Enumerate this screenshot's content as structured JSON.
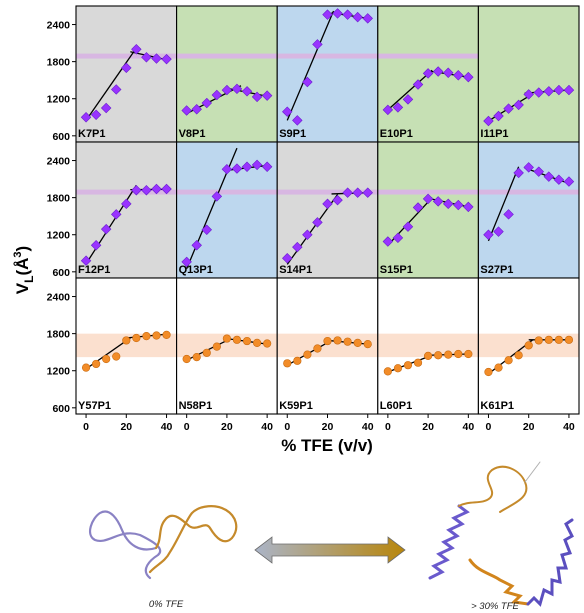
{
  "chart_data": {
    "type": "scatter",
    "xlabel": "% TFE (v/v)",
    "ylabel": "V_L (Å^3)",
    "ylabel_main": "V",
    "ylabel_sub": "L",
    "ylabel_unit_open": "(Å",
    "ylabel_unit_sup": "3",
    "ylabel_unit_close": ")",
    "xlim": [
      -5,
      45
    ],
    "ylim": [
      500,
      2700
    ],
    "xticks": [
      0,
      20,
      40
    ],
    "xtick_labels": [
      "0",
      "20",
      "40"
    ],
    "yticks": [
      600,
      1200,
      1800,
      2400
    ],
    "ytick_labels": [
      "600",
      "1200",
      "1800",
      "2400"
    ],
    "colors": {
      "gray_bg": "#d9d9d9",
      "green_bg": "#c6e0b4",
      "blue_bg": "#bdd7ee",
      "band_purple": "#d8b7e2",
      "band_orange": "#fbe0cf",
      "marker_purple": "#9933ff",
      "marker_orange": "#f28c28"
    },
    "panels": [
      {
        "label": "K7P1",
        "bg": "gray",
        "band": "purple",
        "marker": "diamond",
        "x": [
          0,
          5,
          10,
          15,
          20,
          25,
          30,
          35,
          40
        ],
        "y": [
          900,
          940,
          1050,
          1350,
          1700,
          2000,
          1870,
          1850,
          1840
        ],
        "fits": [
          [
            [
              0,
              850
            ],
            [
              25,
              2020
            ]
          ],
          [
            [
              22,
              1960
            ],
            [
              40,
              1830
            ]
          ]
        ]
      },
      {
        "label": "V8P1",
        "bg": "green",
        "band": "purple",
        "marker": "diamond",
        "x": [
          0,
          5,
          10,
          15,
          20,
          25,
          30,
          35,
          40
        ],
        "y": [
          1010,
          1030,
          1130,
          1260,
          1340,
          1360,
          1320,
          1230,
          1250
        ],
        "fits": [
          [
            [
              0,
              960
            ],
            [
              27,
              1410
            ]
          ],
          [
            [
              20,
              1370
            ],
            [
              40,
              1240
            ]
          ]
        ]
      },
      {
        "label": "S9P1",
        "bg": "blue",
        "band": "purple",
        "marker": "diamond",
        "x": [
          0,
          5,
          10,
          15,
          20,
          25,
          30,
          35,
          40
        ],
        "y": [
          990,
          850,
          1470,
          2080,
          2560,
          2580,
          2560,
          2520,
          2500
        ],
        "fits": [
          [
            [
              0,
              850
            ],
            [
              23,
              2620
            ]
          ],
          [
            [
              22,
              2590
            ],
            [
              40,
              2500
            ]
          ]
        ]
      },
      {
        "label": "E10P1",
        "bg": "green",
        "band": "purple",
        "marker": "diamond",
        "x": [
          0,
          5,
          10,
          15,
          20,
          25,
          30,
          35,
          40
        ],
        "y": [
          1020,
          1060,
          1190,
          1430,
          1610,
          1640,
          1620,
          1580,
          1550
        ],
        "fits": [
          [
            [
              0,
              1020
            ],
            [
              22,
              1660
            ]
          ],
          [
            [
              20,
              1650
            ],
            [
              40,
              1550
            ]
          ]
        ]
      },
      {
        "label": "I11P1",
        "bg": "green",
        "band": "none",
        "marker": "diamond",
        "x": [
          0,
          5,
          10,
          15,
          20,
          25,
          30,
          35,
          40
        ],
        "y": [
          840,
          920,
          1040,
          1100,
          1270,
          1300,
          1320,
          1340,
          1340
        ],
        "fits": [
          [
            [
              0,
              840
            ],
            [
              22,
              1280
            ]
          ],
          [
            [
              18,
              1290
            ],
            [
              40,
              1340
            ]
          ]
        ]
      },
      {
        "label": "F12P1",
        "bg": "gray",
        "band": "purple",
        "marker": "diamond",
        "x": [
          0,
          5,
          10,
          15,
          20,
          25,
          30,
          35,
          40
        ],
        "y": [
          780,
          1030,
          1290,
          1530,
          1700,
          1920,
          1920,
          1940,
          1940
        ],
        "fits": [
          [
            [
              0,
              730
            ],
            [
              25,
              2000
            ]
          ],
          [
            [
              22,
              1930
            ],
            [
              40,
              1935
            ]
          ]
        ]
      },
      {
        "label": "Q13P1",
        "bg": "blue",
        "band": "purple",
        "marker": "diamond",
        "x": [
          0,
          5,
          10,
          15,
          20,
          25,
          30,
          35,
          40
        ],
        "y": [
          760,
          1030,
          1280,
          1820,
          2260,
          2270,
          2300,
          2330,
          2300
        ],
        "fits": [
          [
            [
              0,
              650
            ],
            [
              25,
              2600
            ]
          ],
          [
            [
              22,
              2250
            ],
            [
              40,
              2320
            ]
          ]
        ]
      },
      {
        "label": "S14P1",
        "bg": "gray",
        "band": "purple",
        "marker": "diamond",
        "x": [
          0,
          5,
          10,
          15,
          20,
          25,
          30,
          35,
          40
        ],
        "y": [
          820,
          1000,
          1200,
          1400,
          1700,
          1760,
          1880,
          1880,
          1880
        ],
        "fits": [
          [
            [
              0,
              720
            ],
            [
              25,
              1850
            ]
          ],
          [
            [
              22,
              1860
            ],
            [
              40,
              1880
            ]
          ]
        ]
      },
      {
        "label": "S15P1",
        "bg": "green",
        "band": "purple",
        "marker": "diamond",
        "x": [
          0,
          5,
          10,
          15,
          20,
          25,
          30,
          35,
          40
        ],
        "y": [
          1090,
          1150,
          1330,
          1640,
          1780,
          1740,
          1700,
          1680,
          1650
        ],
        "fits": [
          [
            [
              0,
              1030
            ],
            [
              22,
              1800
            ]
          ],
          [
            [
              20,
              1790
            ],
            [
              40,
              1650
            ]
          ]
        ]
      },
      {
        "label": "S27P1",
        "bg": "blue",
        "band": "purple",
        "marker": "diamond",
        "x": [
          0,
          5,
          10,
          15,
          20,
          25,
          30,
          35,
          40
        ],
        "y": [
          1200,
          1250,
          1530,
          2200,
          2290,
          2220,
          2140,
          2090,
          2060
        ],
        "fits": [
          [
            [
              0,
              1100
            ],
            [
              15,
              2300
            ]
          ],
          [
            [
              18,
              2280
            ],
            [
              40,
              2030
            ]
          ]
        ]
      },
      {
        "label": "Y57P1",
        "bg": "white",
        "band": "orange",
        "marker": "circle",
        "x": [
          0,
          5,
          10,
          15,
          20,
          25,
          30,
          35,
          40
        ],
        "y": [
          1250,
          1310,
          1390,
          1430,
          1690,
          1730,
          1760,
          1770,
          1780
        ],
        "fits": [
          [
            [
              0,
              1230
            ],
            [
              22,
              1730
            ]
          ],
          [
            [
              20,
              1730
            ],
            [
              40,
              1790
            ]
          ]
        ]
      },
      {
        "label": "N58P1",
        "bg": "white",
        "band": "orange",
        "marker": "circle",
        "x": [
          0,
          5,
          10,
          15,
          20,
          25,
          30,
          35,
          40
        ],
        "y": [
          1390,
          1420,
          1490,
          1590,
          1720,
          1700,
          1680,
          1650,
          1640
        ],
        "fits": [
          [
            [
              0,
              1370
            ],
            [
              22,
              1720
            ]
          ],
          [
            [
              20,
              1720
            ],
            [
              40,
              1630
            ]
          ]
        ]
      },
      {
        "label": "K59P1",
        "bg": "white",
        "band": "orange",
        "marker": "circle",
        "x": [
          0,
          5,
          10,
          15,
          20,
          25,
          30,
          35,
          40
        ],
        "y": [
          1320,
          1360,
          1460,
          1560,
          1680,
          1690,
          1670,
          1650,
          1630
        ],
        "fits": [
          [
            [
              0,
              1290
            ],
            [
              22,
              1690
            ]
          ],
          [
            [
              20,
              1690
            ],
            [
              40,
              1630
            ]
          ]
        ]
      },
      {
        "label": "L60P1",
        "bg": "white",
        "band": "orange",
        "marker": "circle",
        "x": [
          0,
          5,
          10,
          15,
          20,
          25,
          30,
          35,
          40
        ],
        "y": [
          1190,
          1240,
          1290,
          1330,
          1440,
          1450,
          1460,
          1470,
          1470
        ],
        "fits": [
          [
            [
              0,
              1180
            ],
            [
              22,
              1450
            ]
          ],
          [
            [
              20,
              1450
            ],
            [
              40,
              1470
            ]
          ]
        ]
      },
      {
        "label": "K61P1",
        "bg": "white",
        "band": "orange",
        "marker": "circle",
        "x": [
          0,
          5,
          10,
          15,
          20,
          25,
          30,
          35,
          40
        ],
        "y": [
          1180,
          1250,
          1370,
          1450,
          1610,
          1690,
          1700,
          1700,
          1700
        ],
        "fits": [
          [
            [
              0,
              1150
            ],
            [
              22,
              1700
            ]
          ],
          [
            [
              20,
              1700
            ],
            [
              40,
              1700
            ]
          ]
        ]
      }
    ],
    "bands": {
      "purple": [
        1850,
        1930
      ],
      "orange": [
        1420,
        1800
      ]
    }
  },
  "illustration": {
    "left_caption": "0% TFE",
    "right_caption": "> 30% TFE",
    "arrow_gradient": [
      "#aab4c8",
      "#b8860b"
    ]
  }
}
